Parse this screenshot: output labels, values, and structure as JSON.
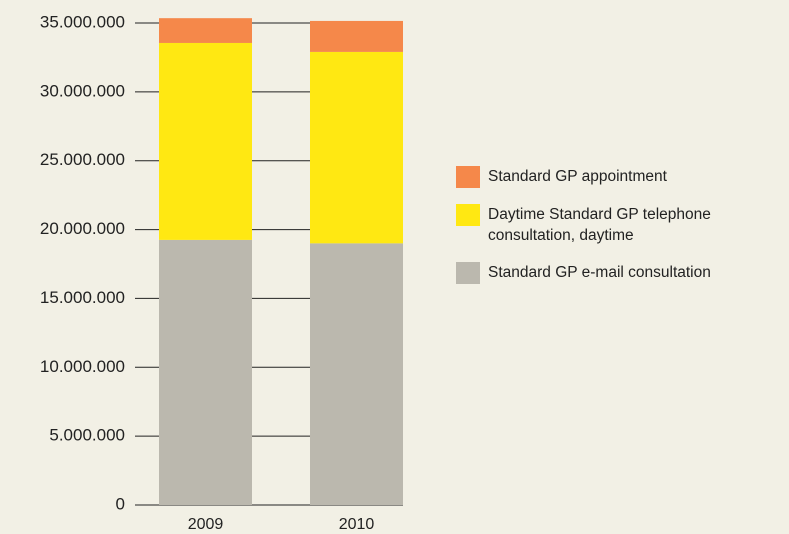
{
  "chart_data": {
    "type": "stacked_bar",
    "categories": [
      "2009",
      "2010"
    ],
    "series": [
      {
        "name": "Standard GP e-mail consultation",
        "color": "#bbb8ae",
        "values": [
          19250000,
          19000000
        ]
      },
      {
        "name": "Daytime Standard GP telephone consultation, daytime",
        "color": "#ffe812",
        "values": [
          14300000,
          13900000
        ]
      },
      {
        "name": "Standard GP appointment",
        "color": "#f5884a",
        "values": [
          1800000,
          2250000
        ]
      }
    ],
    "ylim": [
      0,
      35000000
    ],
    "yticks": [
      0,
      {
        "value": 5000000,
        "label": "5.000.000"
      },
      {
        "value": 10000000,
        "label": "10.000.000"
      },
      {
        "value": 15000000,
        "label": "15.000.000"
      },
      {
        "value": 20000000,
        "label": "20.000.000"
      },
      {
        "value": 25000000,
        "label": "25.000.000"
      },
      {
        "value": 30000000,
        "label": "30.000.000"
      },
      {
        "value": 35000000,
        "label": "35.000.000"
      }
    ],
    "grid": true
  }
}
